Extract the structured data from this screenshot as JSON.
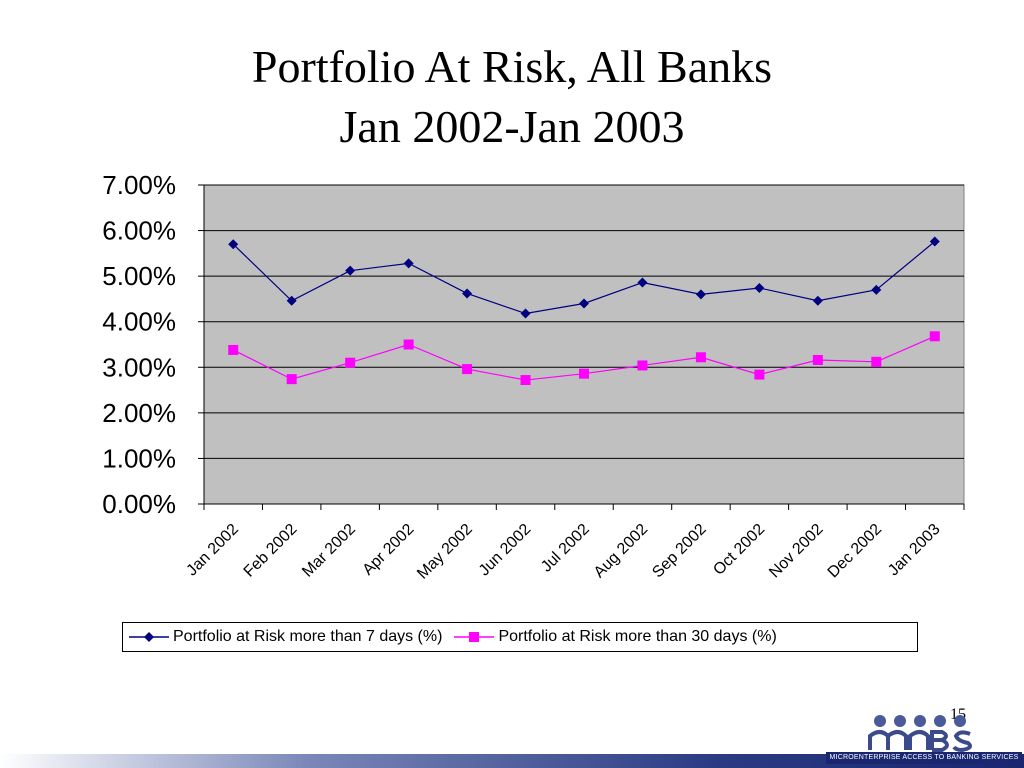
{
  "slide": {
    "title_line_1": "Portfolio At Risk, All Banks",
    "title_line_2": "Jan 2002-Jan 2003",
    "page_number": "15",
    "logo_caption": "MICROENTERPRISE ACCESS TO BANKING SERVICES"
  },
  "chart_data": {
    "type": "line",
    "title": "Portfolio At Risk, All Banks Jan 2002-Jan 2003",
    "xlabel": "",
    "ylabel": "",
    "categories": [
      "Jan 2002",
      "Feb 2002",
      "Mar 2002",
      "Apr 2002",
      "May 2002",
      "Jun 2002",
      "Jul 2002",
      "Aug 2002",
      "Sep 2002",
      "Oct 2002",
      "Nov 2002",
      "Dec 2002",
      "Jan 2003"
    ],
    "ylim": [
      0,
      7
    ],
    "yticks": [
      "0.00%",
      "1.00%",
      "2.00%",
      "3.00%",
      "4.00%",
      "5.00%",
      "6.00%",
      "7.00%"
    ],
    "grid": true,
    "legend_position": "bottom",
    "plot_background": "#c0c0c0",
    "series": [
      {
        "name": "Portfolio at Risk more than 7 days (%)",
        "color": "#000080",
        "marker": "diamond",
        "values": [
          5.7,
          4.46,
          5.12,
          5.28,
          4.62,
          4.18,
          4.4,
          4.86,
          4.6,
          4.74,
          4.46,
          4.7,
          5.76
        ]
      },
      {
        "name": "Portfolio at Risk more than 30 days (%)",
        "color": "#ff00ff",
        "marker": "square",
        "values": [
          3.38,
          2.74,
          3.1,
          3.5,
          2.96,
          2.72,
          2.86,
          3.04,
          3.22,
          2.84,
          3.16,
          3.12,
          3.68
        ]
      }
    ]
  }
}
